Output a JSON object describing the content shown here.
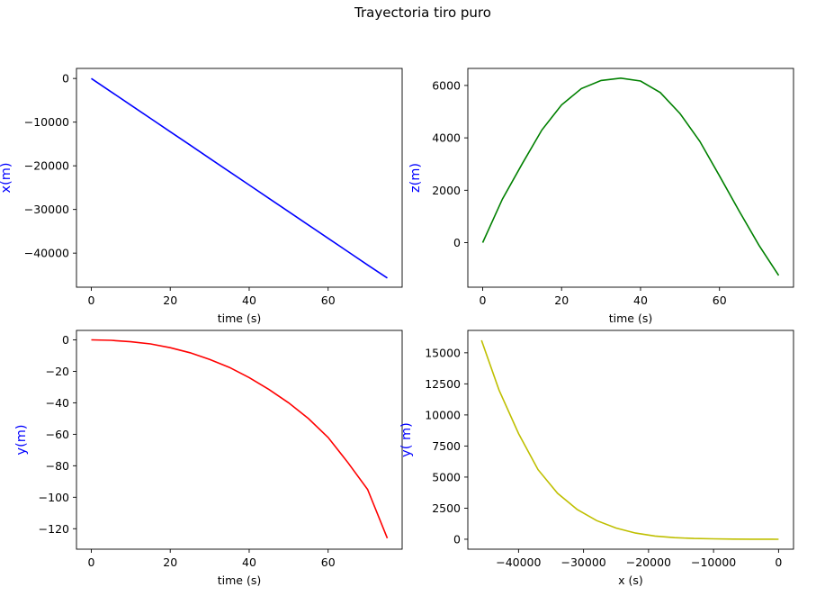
{
  "figure": {
    "title": "Trayectoria tiro puro"
  },
  "chart_data": [
    {
      "type": "line",
      "xlabel": "time (s)",
      "ylabel": "x(m)",
      "color": "#0000ff",
      "label_color": "#0000ff",
      "xlim": [
        -3.75,
        78.75
      ],
      "ylim": [
        -47800,
        2300
      ],
      "xticks": [
        0,
        20,
        40,
        60
      ],
      "xtick_labels": [
        "0",
        "20",
        "40",
        "60"
      ],
      "yticks": [
        0,
        -10000,
        -20000,
        -30000,
        -40000
      ],
      "ytick_labels": [
        "0",
        "−10000",
        "−20000",
        "−30000",
        "−40000"
      ],
      "x": [
        0,
        5,
        10,
        15,
        20,
        25,
        30,
        35,
        40,
        45,
        50,
        55,
        60,
        65,
        70,
        75
      ],
      "y": [
        0,
        -3050,
        -6100,
        -9150,
        -12200,
        -15250,
        -18300,
        -21350,
        -24400,
        -27450,
        -30500,
        -33550,
        -36600,
        -39650,
        -42700,
        -45700
      ]
    },
    {
      "type": "line",
      "xlabel": "time (s)",
      "ylabel": "z(m)",
      "color": "#008000",
      "label_color": "#0000ff",
      "xlim": [
        -3.75,
        78.75
      ],
      "ylim": [
        -1700,
        6650
      ],
      "xticks": [
        0,
        20,
        40,
        60
      ],
      "xtick_labels": [
        "0",
        "20",
        "40",
        "60"
      ],
      "yticks": [
        0,
        2000,
        4000,
        6000
      ],
      "ytick_labels": [
        "0",
        "2000",
        "4000",
        "6000"
      ],
      "x": [
        0,
        5,
        10,
        15,
        20,
        25,
        30,
        35,
        40,
        45,
        50,
        55,
        60,
        65,
        70,
        75
      ],
      "y": [
        0,
        1660,
        3000,
        4300,
        5260,
        5880,
        6190,
        6280,
        6170,
        5730,
        4930,
        3870,
        2550,
        1200,
        -100,
        -1250
      ]
    },
    {
      "type": "line",
      "xlabel": "time (s)",
      "ylabel": "y(m)",
      "color": "#ff0000",
      "label_color": "#0000ff",
      "xlim": [
        -3.75,
        78.75
      ],
      "ylim": [
        -133,
        6
      ],
      "xticks": [
        0,
        20,
        40,
        60
      ],
      "xtick_labels": [
        "0",
        "20",
        "40",
        "60"
      ],
      "yticks": [
        0,
        -20,
        -40,
        -60,
        -80,
        -100,
        -120
      ],
      "ytick_labels": [
        "0",
        "−20",
        "−40",
        "−60",
        "−80",
        "−100",
        "−120"
      ],
      "x": [
        0,
        5,
        10,
        15,
        20,
        25,
        30,
        35,
        40,
        45,
        50,
        55,
        60,
        65,
        70,
        75
      ],
      "y": [
        0,
        -0.3,
        -1.2,
        -2.6,
        -5,
        -8.2,
        -12.5,
        -17.5,
        -24,
        -31.5,
        -40,
        -50,
        -62,
        -78,
        -95,
        -126
      ]
    },
    {
      "type": "line",
      "xlabel": "x (s)",
      "ylabel": "y( m)",
      "color": "#bfbf00",
      "label_color": "#0000ff",
      "xlim": [
        -47800,
        2300
      ],
      "ylim": [
        -800,
        16800
      ],
      "xticks": [
        -40000,
        -30000,
        -20000,
        -10000,
        0
      ],
      "xtick_labels": [
        "−40000",
        "−30000",
        "−20000",
        "−10000",
        "0"
      ],
      "yticks": [
        0,
        2500,
        5000,
        7500,
        10000,
        12500,
        15000
      ],
      "ytick_labels": [
        "0",
        "2500",
        "5000",
        "7500",
        "10000",
        "12500",
        "15000"
      ],
      "x": [
        -45700,
        -43000,
        -40000,
        -37000,
        -34000,
        -31000,
        -28000,
        -25000,
        -22000,
        -19000,
        -16000,
        -13000,
        -10000,
        -7000,
        -4000,
        -1000,
        0
      ],
      "y": [
        16000,
        12000,
        8500,
        5600,
        3700,
        2400,
        1500,
        900,
        500,
        260,
        130,
        60,
        30,
        12,
        5,
        1,
        0
      ]
    }
  ]
}
